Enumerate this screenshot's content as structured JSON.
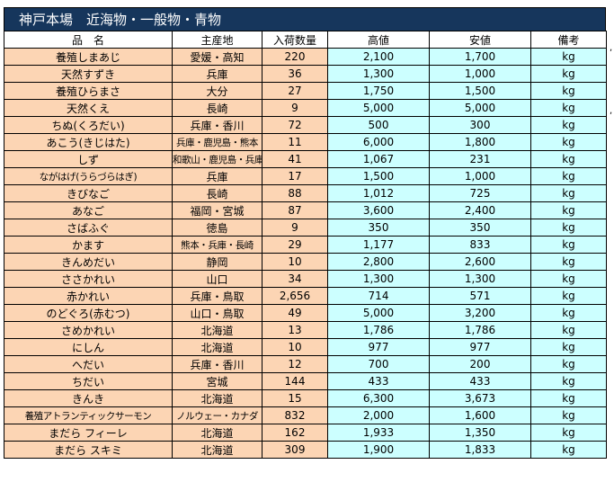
{
  "title": "神戸本場　近海物・一般物・青物",
  "headers": {
    "name": "品　名",
    "origin": "主産地",
    "qty": "入荷数量",
    "high": "高値",
    "low": "安値",
    "note": "備考"
  },
  "rows": [
    {
      "name": "養殖しまあじ",
      "origin": "愛媛・高知",
      "qty": "220",
      "high": "2,100",
      "low": "1,700",
      "unit": "kg"
    },
    {
      "name": "天然すずき",
      "origin": "兵庫",
      "qty": "36",
      "high": "1,300",
      "low": "1,000",
      "unit": "kg"
    },
    {
      "name": "養殖ひらまさ",
      "origin": "大分",
      "qty": "27",
      "high": "1,750",
      "low": "1,500",
      "unit": "kg"
    },
    {
      "name": "天然くえ",
      "origin": "長崎",
      "qty": "9",
      "high": "5,000",
      "low": "5,000",
      "unit": "kg"
    },
    {
      "name": "ちぬ(くろだい)",
      "origin": "兵庫・香川",
      "qty": "72",
      "high": "500",
      "low": "300",
      "unit": "kg"
    },
    {
      "name": "あこう(きじはた)",
      "origin": "兵庫・鹿児島・熊本",
      "qty": "11",
      "high": "6,000",
      "low": "1,800",
      "unit": "kg"
    },
    {
      "name": "しず",
      "origin": "和歌山・鹿児島・兵庫",
      "qty": "41",
      "high": "1,067",
      "low": "231",
      "unit": "kg"
    },
    {
      "name": "ながはげ(うらづらはぎ)",
      "origin": "兵庫",
      "qty": "17",
      "high": "1,500",
      "low": "1,000",
      "unit": "kg"
    },
    {
      "name": "きびなご",
      "origin": "長崎",
      "qty": "88",
      "high": "1,012",
      "low": "725",
      "unit": "kg"
    },
    {
      "name": "あなご",
      "origin": "福岡・宮城",
      "qty": "87",
      "high": "3,600",
      "low": "2,400",
      "unit": "kg"
    },
    {
      "name": "さばふぐ",
      "origin": "徳島",
      "qty": "9",
      "high": "350",
      "low": "350",
      "unit": "kg"
    },
    {
      "name": "かます",
      "origin": "熊本・兵庫・長崎",
      "qty": "29",
      "high": "1,177",
      "low": "833",
      "unit": "kg"
    },
    {
      "name": "きんめだい",
      "origin": "静岡",
      "qty": "10",
      "high": "2,800",
      "low": "2,600",
      "unit": "kg"
    },
    {
      "name": "ささかれい",
      "origin": "山口",
      "qty": "34",
      "high": "1,300",
      "low": "1,300",
      "unit": "kg"
    },
    {
      "name": "赤かれい",
      "origin": "兵庫・鳥取",
      "qty": "2,656",
      "high": "714",
      "low": "571",
      "unit": "kg"
    },
    {
      "name": "のどぐろ(赤むつ)",
      "origin": "山口・鳥取",
      "qty": "49",
      "high": "5,000",
      "low": "3,200",
      "unit": "kg"
    },
    {
      "name": "さめかれい",
      "origin": "北海道",
      "qty": "13",
      "high": "1,786",
      "low": "1,786",
      "unit": "kg"
    },
    {
      "name": "にしん",
      "origin": "北海道",
      "qty": "10",
      "high": "977",
      "low": "977",
      "unit": "kg"
    },
    {
      "name": "へだい",
      "origin": "兵庫・香川",
      "qty": "12",
      "high": "700",
      "low": "200",
      "unit": "kg"
    },
    {
      "name": "ちだい",
      "origin": "宮城",
      "qty": "144",
      "high": "433",
      "low": "433",
      "unit": "kg"
    },
    {
      "name": "きんき",
      "origin": "北海道",
      "qty": "15",
      "high": "6,300",
      "low": "3,673",
      "unit": "kg"
    },
    {
      "name": "養殖アトランティックサーモン",
      "origin": "ノルウェー・カナダ",
      "qty": "832",
      "high": "2,000",
      "low": "1,600",
      "unit": "kg"
    },
    {
      "name": "まだら フィーレ",
      "origin": "北海道",
      "qty": "162",
      "high": "1,933",
      "low": "1,350",
      "unit": "kg"
    },
    {
      "name": "まだら スキミ",
      "origin": "北海道",
      "qty": "309",
      "high": "1,900",
      "low": "1,833",
      "unit": "kg"
    }
  ],
  "colors": {
    "title_bg": "#16365c",
    "left_cells": "#fcd5b4",
    "price_cells": "#ccffff"
  }
}
